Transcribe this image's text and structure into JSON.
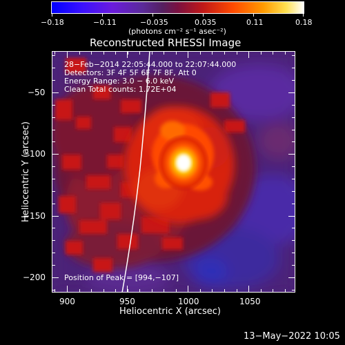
{
  "colorbar": {
    "tick_labels": [
      "−0.18",
      "−0.11",
      "−0.035",
      "0.035",
      "0.11",
      "0.18"
    ],
    "unit_label": "(photons cm⁻² s⁻¹ asec⁻²)"
  },
  "plot": {
    "title": "Reconstructed RHESSI Image",
    "info_lines": [
      "28−Feb−2014 22:05:44.000  to  22:07:44.000",
      "Detectors: 3F 4F 5F 6F 7F 8F, Att 0",
      "Energy Range: 3.0 − 6.0 keV",
      "Clean     Total counts: 1.72E+04"
    ],
    "peak_text": "Position of Peak = [994,−107]",
    "x_axis": {
      "label": "Heliocentric X (arcsec)",
      "tick_labels": [
        "900",
        "950",
        "1000",
        "1050"
      ]
    },
    "y_axis": {
      "label": "Heliocentric Y (arcsec)",
      "tick_labels": [
        "−50",
        "−100",
        "−150",
        "−200"
      ]
    }
  },
  "footer": {
    "timestamp": "13−May−2022 10:05"
  }
}
